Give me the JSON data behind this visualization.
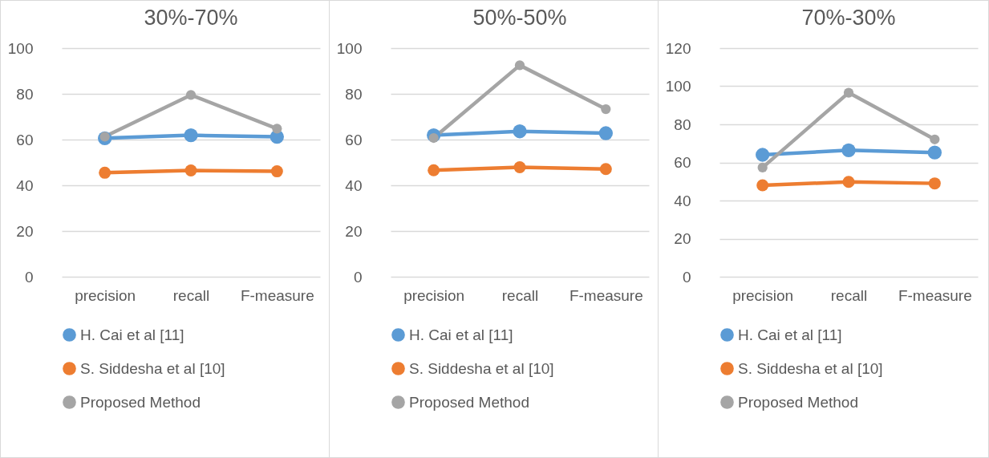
{
  "chart_data": [
    {
      "type": "line",
      "title": "30%-70%",
      "categories": [
        "precision",
        "recall",
        "F-measure"
      ],
      "series": [
        {
          "name": "H. Cai et al [11]",
          "color": "#5b9bd5",
          "values": [
            60.6,
            61.9,
            61.2
          ]
        },
        {
          "name": "S. Siddesha et al [10]",
          "color": "#ed7d31",
          "values": [
            45.5,
            46.5,
            46.1
          ]
        },
        {
          "name": "Proposed Method",
          "color": "#a5a5a5",
          "values": [
            61.3,
            79.5,
            64.8
          ]
        }
      ],
      "ylim": [
        0,
        100
      ],
      "yticks": [
        0,
        20,
        40,
        60,
        80,
        100
      ],
      "grid": "y",
      "legend": "bottom",
      "marker": "circle"
    },
    {
      "type": "line",
      "title": "50%-50%",
      "categories": [
        "precision",
        "recall",
        "F-measure"
      ],
      "series": [
        {
          "name": "H. Cai et al [11]",
          "color": "#5b9bd5",
          "values": [
            61.9,
            63.6,
            62.8
          ]
        },
        {
          "name": "S. Siddesha et al [10]",
          "color": "#ed7d31",
          "values": [
            46.6,
            47.9,
            47.1
          ]
        },
        {
          "name": "Proposed Method",
          "color": "#a5a5a5",
          "values": [
            60.7,
            92.5,
            73.3
          ]
        }
      ],
      "ylim": [
        0,
        100
      ],
      "yticks": [
        0,
        20,
        40,
        60,
        80,
        100
      ],
      "grid": "y",
      "legend": "bottom",
      "marker": "circle"
    },
    {
      "type": "line",
      "title": "70%-30%",
      "categories": [
        "precision",
        "recall",
        "F-measure"
      ],
      "series": [
        {
          "name": "H. Cai et al [11]",
          "color": "#5b9bd5",
          "values": [
            64.0,
            66.4,
            65.2
          ]
        },
        {
          "name": "S. Siddesha et al [10]",
          "color": "#ed7d31",
          "values": [
            48.0,
            49.8,
            49.0
          ]
        },
        {
          "name": "Proposed Method",
          "color": "#a5a5a5",
          "values": [
            57.3,
            96.6,
            72.1
          ]
        }
      ],
      "ylim": [
        0,
        120
      ],
      "yticks": [
        0,
        20,
        40,
        60,
        80,
        100,
        120
      ],
      "grid": "y",
      "legend": "bottom",
      "marker": "circle"
    }
  ]
}
